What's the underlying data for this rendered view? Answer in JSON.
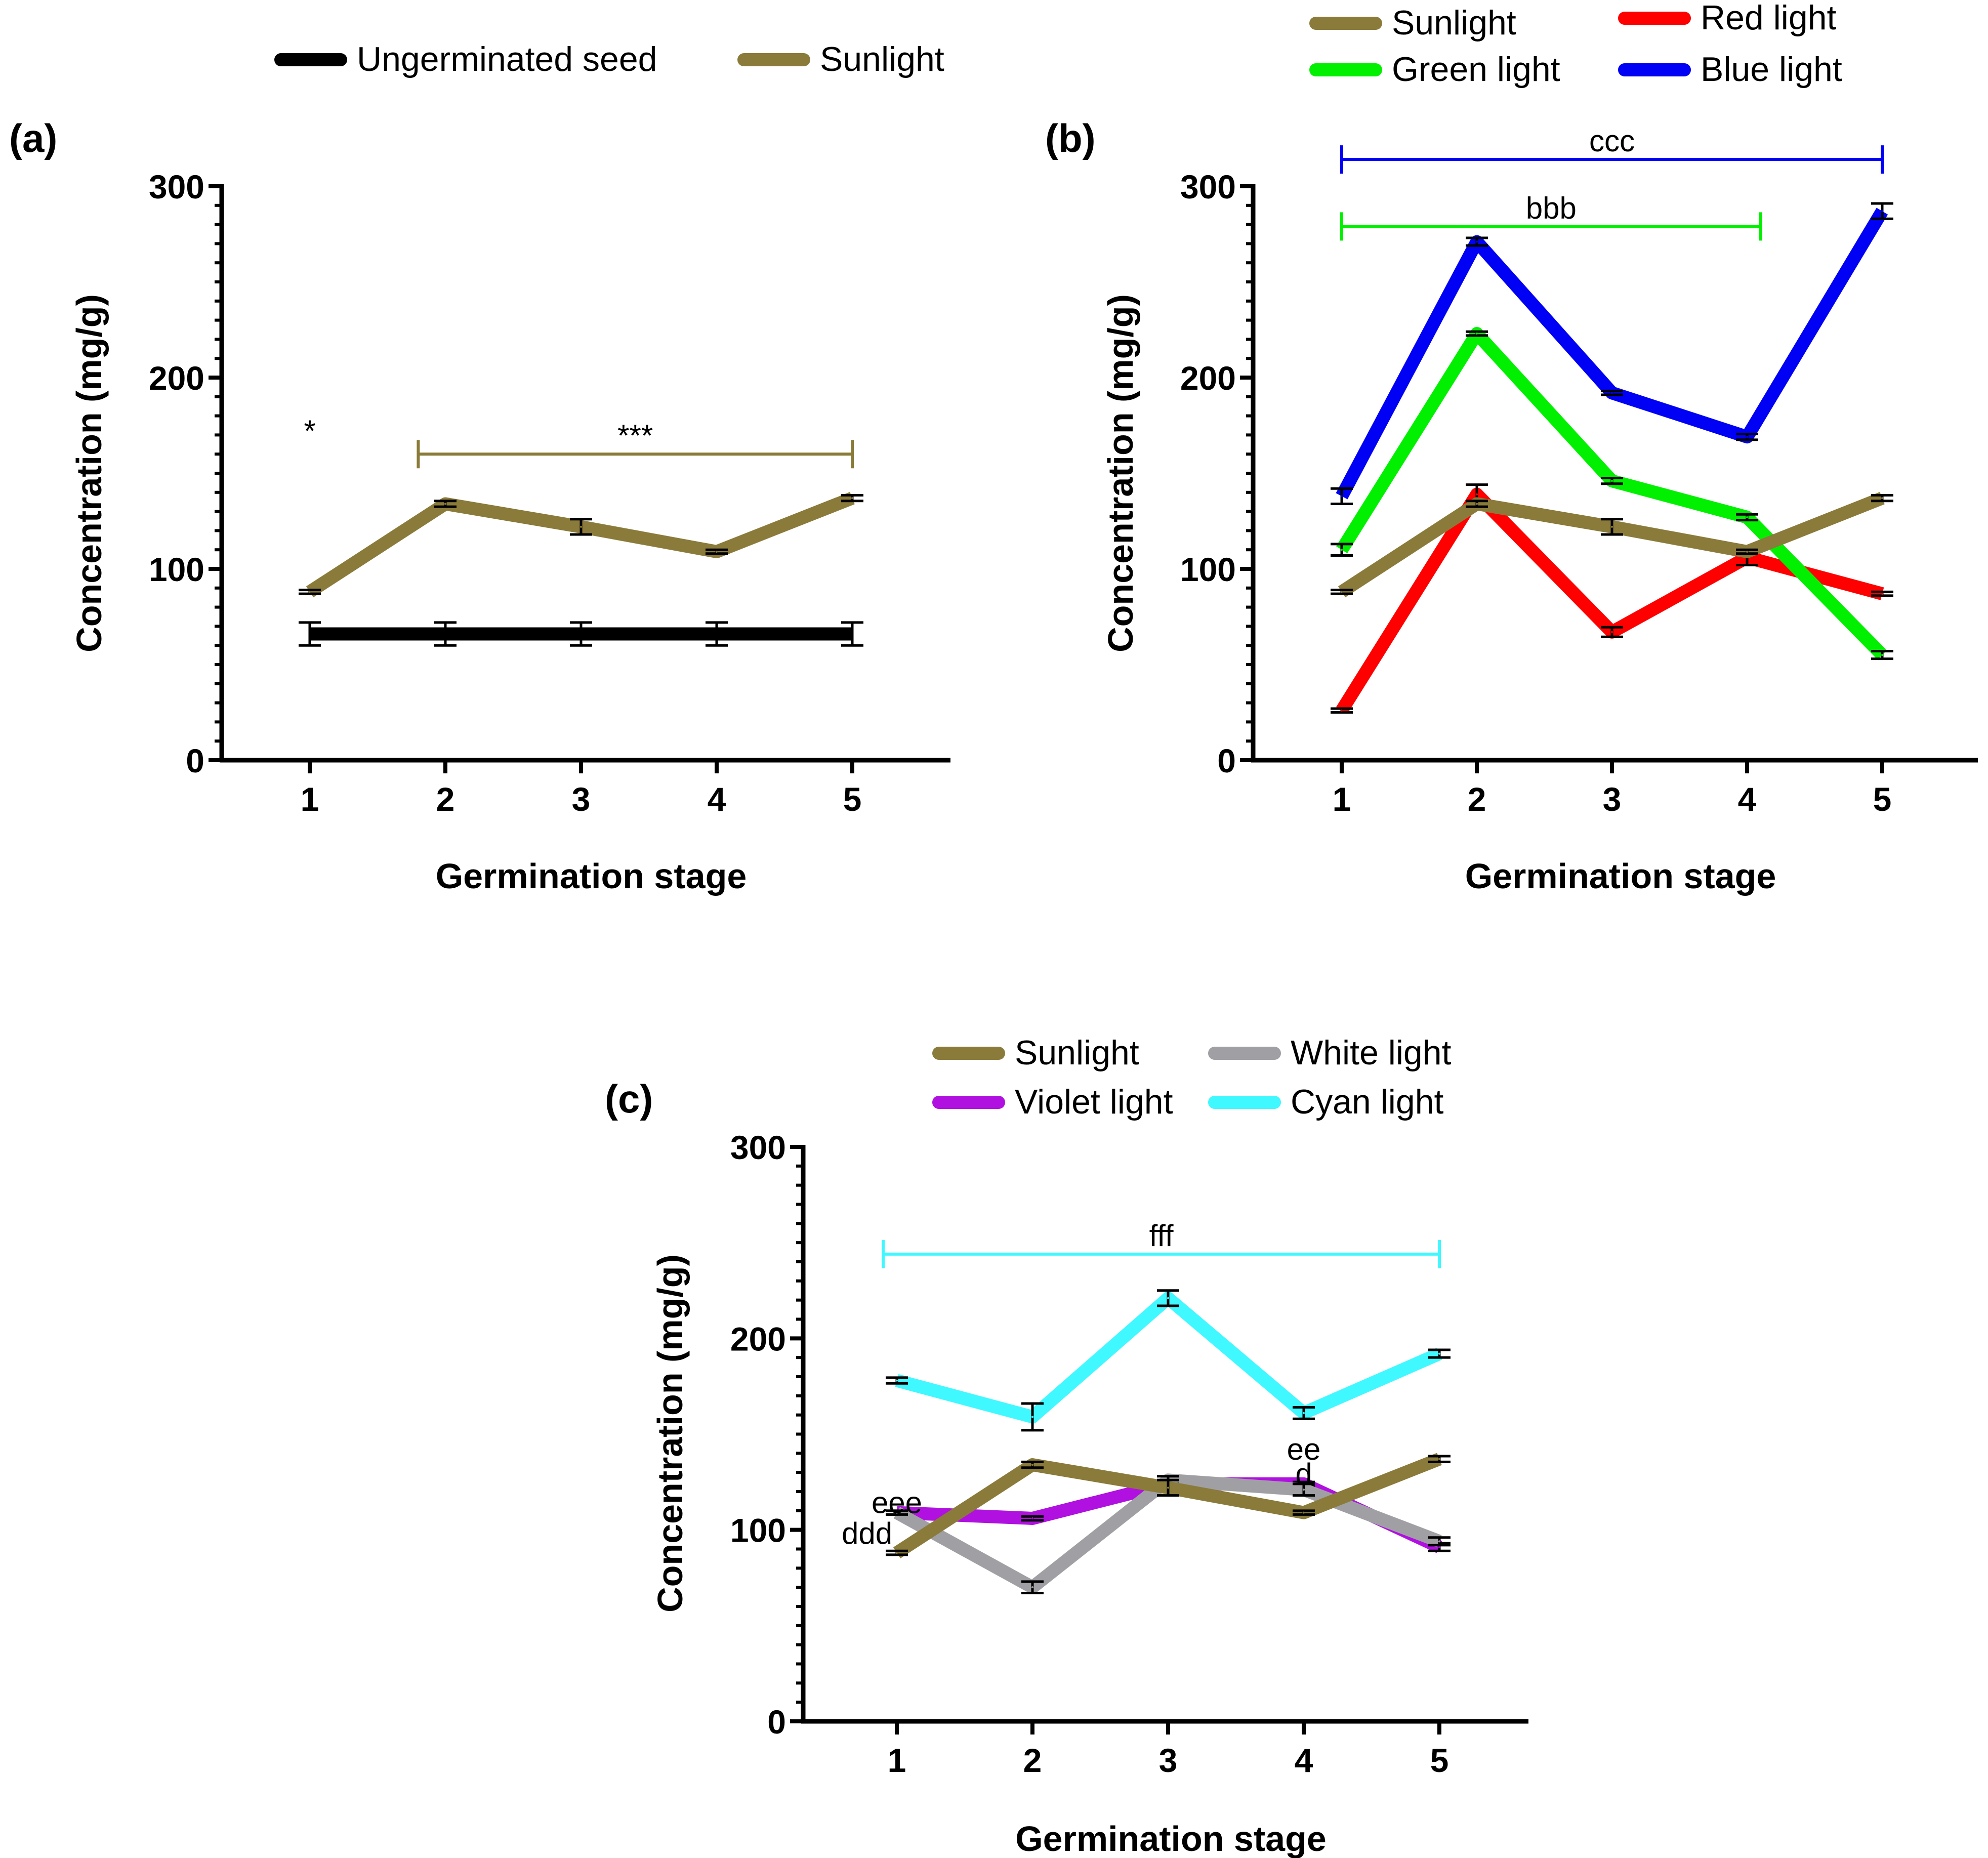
{
  "colors": {
    "sunlight": "#8B7B3A",
    "ungerminated": "#000000",
    "red": "#FF0000",
    "green": "#00F000",
    "blue": "#0000F5",
    "violet": "#B010E0",
    "white": "#A0A0A4",
    "cyan": "#40F8FF",
    "axis": "#000000"
  },
  "chart_data": [
    {
      "type": "line",
      "panel_label": "(a)",
      "xlabel": "Germination stage",
      "ylabel": "Concentration (mg/g)",
      "ylim": [
        0,
        300
      ],
      "yticks": [
        "0",
        "100",
        "200",
        "300"
      ],
      "x": [
        "1",
        "2",
        "3",
        "4",
        "5"
      ],
      "legend": [
        {
          "name": "Ungerminated seed",
          "color_key": "ungerminated"
        },
        {
          "name": "Sunlight",
          "color_key": "sunlight"
        }
      ],
      "series": [
        {
          "name": "Ungerminated seed",
          "color_key": "ungerminated",
          "values": [
            66,
            66,
            66,
            66,
            66
          ],
          "errors": [
            6,
            6,
            6,
            6,
            6
          ]
        },
        {
          "name": "Sunlight",
          "color_key": "sunlight",
          "values": [
            88,
            134,
            122,
            109,
            137
          ],
          "errors": [
            1,
            1.5,
            4,
            1,
            1.5
          ]
        }
      ],
      "annotations": [
        {
          "text": "*",
          "x": 1,
          "y": 172
        }
      ],
      "brackets": [
        {
          "text": "***",
          "from": 1.8,
          "to": 5,
          "y": 160,
          "color_key": "sunlight"
        }
      ]
    },
    {
      "type": "line",
      "panel_label": "(b)",
      "xlabel": "Germination stage",
      "ylabel": "Concentration (mg/g)",
      "ylim": [
        0,
        300
      ],
      "yticks": [
        "0",
        "100",
        "200",
        "300"
      ],
      "x": [
        "1",
        "2",
        "3",
        "4",
        "5"
      ],
      "legend": [
        {
          "name": "Sunlight",
          "color_key": "sunlight"
        },
        {
          "name": "Red light",
          "color_key": "red"
        },
        {
          "name": "Green light",
          "color_key": "green"
        },
        {
          "name": "Blue light",
          "color_key": "blue"
        }
      ],
      "series": [
        {
          "name": "Red light",
          "color_key": "red",
          "values": [
            26,
            139,
            67,
            106,
            87
          ],
          "errors": [
            1,
            5,
            2.5,
            4,
            1
          ]
        },
        {
          "name": "Green light",
          "color_key": "green",
          "values": [
            110,
            223,
            146,
            127,
            55
          ],
          "errors": [
            3,
            1,
            1.5,
            1.5,
            2
          ]
        },
        {
          "name": "Blue light",
          "color_key": "blue",
          "values": [
            138,
            271,
            192,
            169,
            287
          ],
          "errors": [
            4,
            2,
            1,
            1.5,
            4
          ]
        },
        {
          "name": "Sunlight",
          "color_key": "sunlight",
          "values": [
            88,
            134,
            122,
            109,
            137
          ],
          "errors": [
            1,
            1.5,
            4,
            1,
            1.5
          ]
        }
      ],
      "brackets": [
        {
          "text": "ccc",
          "from": 1,
          "to": 5,
          "y": 314,
          "color_key": "blue"
        },
        {
          "text": "bbb",
          "from": 1,
          "to": 4.1,
          "y": 279,
          "color_key": "green"
        }
      ]
    },
    {
      "type": "line",
      "panel_label": "(c)",
      "xlabel": "Germination stage",
      "ylabel": "Concentration (mg/g)",
      "ylim": [
        0,
        300
      ],
      "yticks": [
        "0",
        "100",
        "200",
        "300"
      ],
      "x": [
        "1",
        "2",
        "3",
        "4",
        "5"
      ],
      "legend": [
        {
          "name": "Sunlight",
          "color_key": "sunlight"
        },
        {
          "name": "White light",
          "color_key": "white"
        },
        {
          "name": "Violet light",
          "color_key": "violet"
        },
        {
          "name": "Cyan light",
          "color_key": "cyan"
        }
      ],
      "series": [
        {
          "name": "Cyan light",
          "color_key": "cyan",
          "values": [
            178,
            159,
            221,
            161,
            192
          ],
          "errors": [
            1.5,
            7,
            4,
            3,
            2
          ]
        },
        {
          "name": "Violet light",
          "color_key": "violet",
          "values": [
            109,
            106,
            124,
            124,
            91
          ],
          "errors": [
            1,
            1,
            2,
            1,
            2
          ]
        },
        {
          "name": "White light",
          "color_key": "white",
          "values": [
            109,
            70,
            126,
            121,
            94
          ],
          "errors": [
            1,
            3,
            2,
            3,
            2
          ]
        },
        {
          "name": "Sunlight",
          "color_key": "sunlight",
          "values": [
            88,
            134,
            122,
            109,
            137
          ],
          "errors": [
            1,
            1.5,
            4,
            1,
            1.5
          ]
        }
      ],
      "annotations": [
        {
          "text": "eee",
          "x": 1,
          "y": 114
        },
        {
          "text": "ddd",
          "x": 0.78,
          "y": 98
        },
        {
          "text": "ee",
          "x": 4,
          "y": 142
        },
        {
          "text": "d",
          "x": 4,
          "y": 129
        }
      ],
      "brackets": [
        {
          "text": "fff",
          "from": 0.9,
          "to": 5,
          "y": 244,
          "color_key": "cyan"
        }
      ]
    }
  ]
}
